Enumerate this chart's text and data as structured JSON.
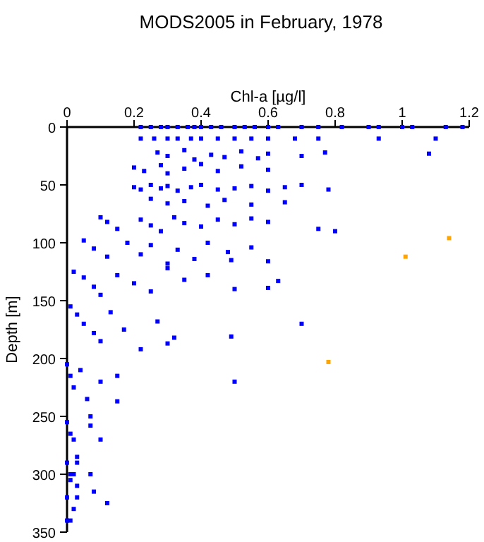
{
  "chart_data": {
    "type": "scatter",
    "title": "MODS2005 in February, 1978",
    "xlabel": "Chl-a [µg/l]",
    "ylabel": "Depth [m]",
    "xlim": [
      0,
      1.2
    ],
    "xticks": [
      0,
      0.2,
      0.4,
      0.6,
      0.8,
      1,
      1.2
    ],
    "ylim": [
      350,
      0
    ],
    "yticks": [
      0,
      50,
      100,
      150,
      200,
      250,
      300,
      350
    ],
    "grid": false,
    "marker": "square",
    "series": [
      {
        "color": "#0000ff",
        "x": [
          0.22,
          0.25,
          0.28,
          0.3,
          0.33,
          0.36,
          0.38,
          0.4,
          0.43,
          0.46,
          0.5,
          0.53,
          0.56,
          0.6,
          0.63,
          0.7,
          0.75,
          0.82,
          0.9,
          0.93,
          1.0,
          1.03,
          1.13,
          1.18,
          0.22,
          0.26,
          0.3,
          0.33,
          0.37,
          0.4,
          0.45,
          0.5,
          0.55,
          0.6,
          0.68,
          0.75,
          0.93,
          1.1,
          0.27,
          0.3,
          0.35,
          0.38,
          0.43,
          0.47,
          0.52,
          0.57,
          0.6,
          0.7,
          0.77,
          1.08,
          0.2,
          0.23,
          0.28,
          0.3,
          0.35,
          0.4,
          0.45,
          0.52,
          0.6,
          0.2,
          0.22,
          0.25,
          0.28,
          0.3,
          0.33,
          0.37,
          0.4,
          0.45,
          0.5,
          0.55,
          0.6,
          0.65,
          0.7,
          0.78,
          0.25,
          0.3,
          0.35,
          0.42,
          0.47,
          0.55,
          0.65,
          0.1,
          0.12,
          0.15,
          0.22,
          0.25,
          0.28,
          0.32,
          0.35,
          0.4,
          0.45,
          0.5,
          0.55,
          0.6,
          0.75,
          0.8,
          0.05,
          0.08,
          0.12,
          0.18,
          0.22,
          0.25,
          0.3,
          0.33,
          0.38,
          0.42,
          0.48,
          0.55,
          0.6,
          0.49,
          0.02,
          0.05,
          0.08,
          0.1,
          0.15,
          0.2,
          0.25,
          0.3,
          0.35,
          0.42,
          0.5,
          0.63,
          0.6,
          0.7,
          0.01,
          0.03,
          0.05,
          0.08,
          0.1,
          0.13,
          0.17,
          0.22,
          0.27,
          0.3,
          0.32,
          0.49,
          0.0,
          0.01,
          0.02,
          0.04,
          0.06,
          0.1,
          0.15,
          0.5,
          0.15,
          0.0,
          0.01,
          0.02,
          0.03,
          0.07,
          0.1,
          0.07,
          0.0,
          0.02,
          0.03,
          0.01,
          0.07,
          0.0,
          0.02,
          0.01,
          0.03,
          0.08,
          0.12,
          0.03,
          0.01,
          0.0
        ],
        "values": [
          0,
          0,
          0,
          0,
          0,
          0,
          0,
          0,
          0,
          0,
          0,
          0,
          0,
          0,
          0,
          0,
          0,
          0,
          0,
          0,
          0,
          0,
          0,
          0,
          10,
          10,
          10,
          10,
          10,
          10,
          10,
          10,
          10,
          10,
          10,
          10,
          10,
          10,
          22,
          25,
          20,
          28,
          24,
          26,
          21,
          27,
          23,
          25,
          22,
          23,
          35,
          38,
          33,
          40,
          36,
          32,
          38,
          34,
          37,
          52,
          54,
          50,
          53,
          51,
          55,
          52,
          50,
          54,
          53,
          51,
          55,
          52,
          50,
          54,
          62,
          66,
          64,
          68,
          63,
          67,
          65,
          78,
          82,
          88,
          80,
          85,
          90,
          78,
          83,
          86,
          80,
          84,
          79,
          82,
          88,
          90,
          98,
          105,
          112,
          100,
          110,
          102,
          118,
          106,
          114,
          100,
          108,
          104,
          116,
          115,
          125,
          130,
          138,
          145,
          128,
          135,
          142,
          122,
          132,
          128,
          140,
          133,
          139,
          170,
          155,
          162,
          170,
          178,
          185,
          160,
          175,
          192,
          168,
          187,
          182,
          181,
          205,
          215,
          225,
          210,
          235,
          220,
          215,
          220,
          237,
          255,
          265,
          270,
          285,
          250,
          270,
          258,
          290,
          300,
          310,
          300,
          300,
          320,
          330,
          340,
          320,
          315,
          325,
          290,
          305,
          340
        ]
      },
      {
        "color": "#ffa500",
        "x": [
          1.14,
          1.01,
          0.78
        ],
        "values": [
          96,
          112,
          203
        ]
      }
    ]
  }
}
